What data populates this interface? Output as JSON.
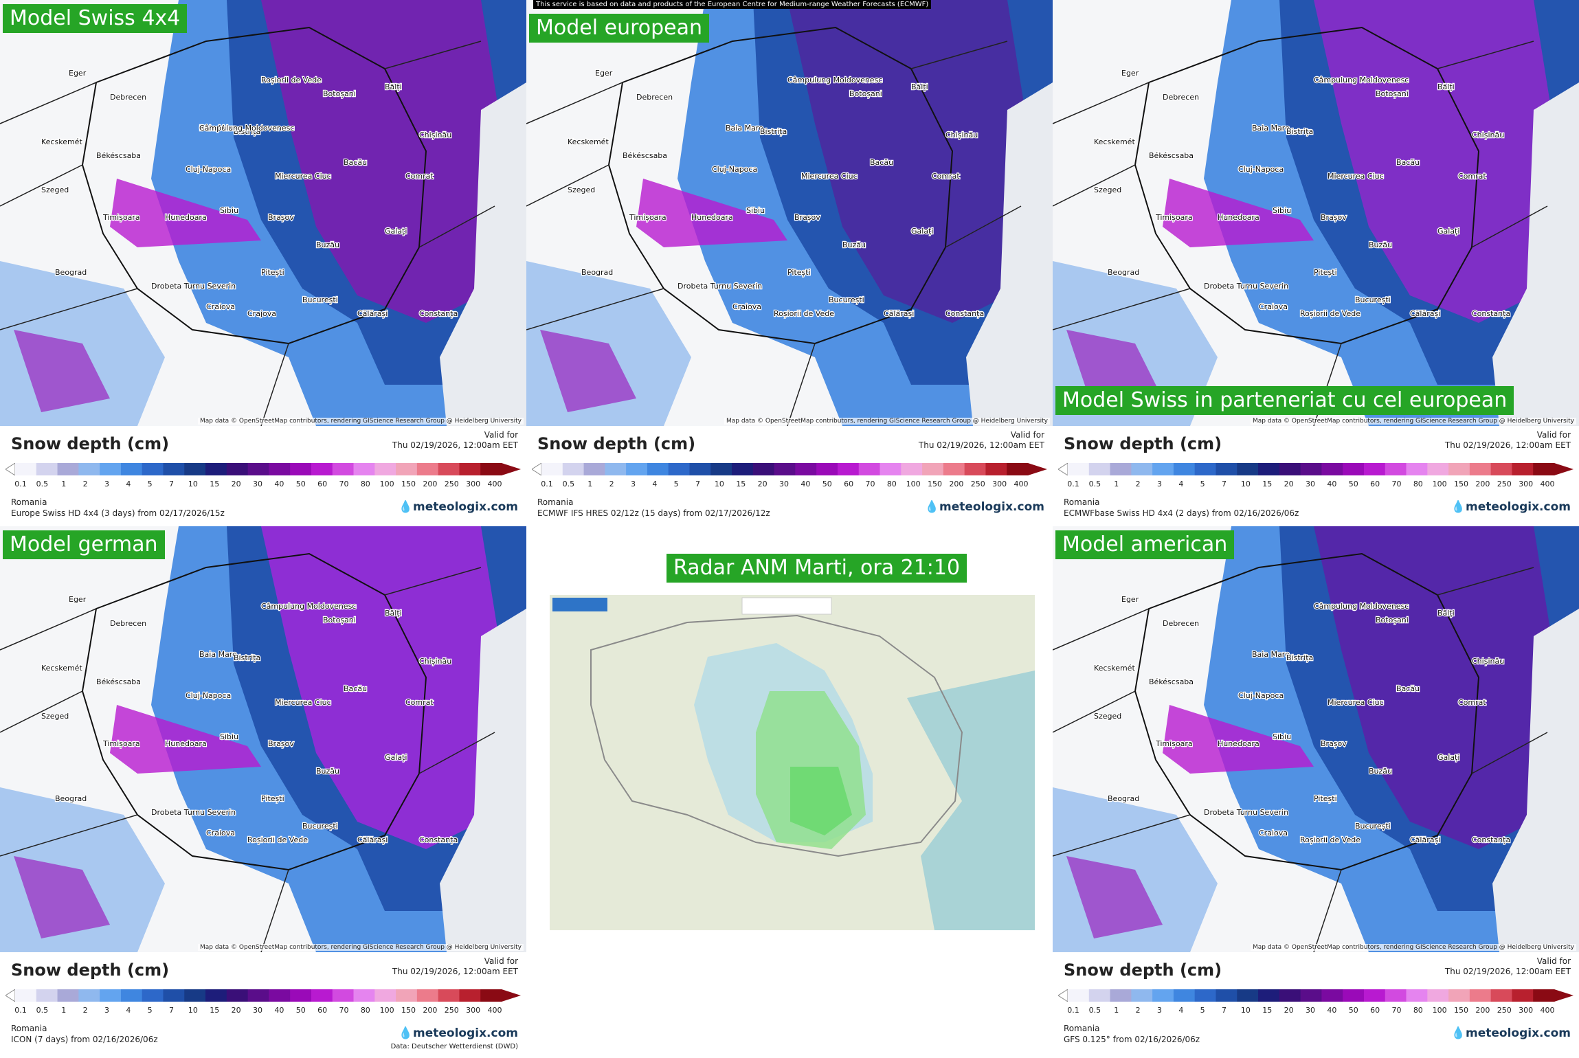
{
  "panels": [
    {
      "id": "swiss4x4",
      "label": "Model Swiss 4x4",
      "label_position": "top",
      "legend_title": "Snow depth (cm)",
      "valid_for": "Valid for",
      "valid_date": "Thu 02/19/2026, 12:00am EET",
      "region": "Romania",
      "source": "Europe Swiss HD 4x4 (3 days) from 02/17/2026/15z",
      "brand": "meteologix.com",
      "tint": "#7a1fb0"
    },
    {
      "id": "european",
      "label": "Model european",
      "label_position": "top",
      "ecmwf_note": "This service is based on data and products of the European Centre for Medium-range Weather Forecasts (ECMWF)",
      "legend_title": "Snow depth (cm)",
      "valid_for": "Valid for",
      "valid_date": "Thu 02/19/2026, 12:00am EET",
      "region": "Romania",
      "source": "ECMWF IFS HRES 02/12z (15 days) from 02/17/2026/12z",
      "brand": "meteologix.com",
      "tint": "#4b2aa0"
    },
    {
      "id": "swiss-ecmwf",
      "label": "Model Swiss in parteneriat cu cel european",
      "label_position": "bottom",
      "legend_title": "Snow depth (cm)",
      "valid_for": "Valid for",
      "valid_date": "Thu 02/19/2026, 12:00am EET",
      "region": "Romania",
      "source": "ECMWFbase Swiss HD 4x4 (2 days) from 02/16/2026/06z",
      "brand": "meteologix.com",
      "tint": "#8a2bc9"
    },
    {
      "id": "german",
      "label": "Model german",
      "label_position": "top",
      "legend_title": "Snow depth (cm)",
      "valid_for": "Valid for",
      "valid_date": "Thu 02/19/2026, 12:00am EET",
      "region": "Romania",
      "source": "ICON (7 days) from 02/16/2026/06z",
      "brand": "meteologix.com",
      "dwd": "Data: Deutscher Wetterdienst (DWD)",
      "tint": "#9a2ad8"
    },
    {
      "id": "american",
      "label": "Model american",
      "label_position": "top",
      "legend_title": "Snow depth (cm)",
      "valid_for": "Valid for",
      "valid_date": "Thu 02/19/2026, 12:00am EET",
      "region": "Romania",
      "source": "GFS 0.125° from 02/16/2026/06z",
      "brand": "meteologix.com",
      "tint": "#5a22a8"
    }
  ],
  "radar": {
    "label": "Radar ANM Marti, ora 21:10"
  },
  "attribution": "Map data © OpenStreetMap contributors, rendering GIScience Research Group @ Heidelberg University",
  "scale_ticks": [
    "0.1",
    "0.5",
    "1",
    "2",
    "3",
    "4",
    "5",
    "7",
    "10",
    "15",
    "20",
    "30",
    "40",
    "50",
    "60",
    "70",
    "80",
    "100",
    "150",
    "200",
    "250",
    "300",
    "400"
  ],
  "scale_colors": [
    "#f4f4fb",
    "#d3d3ee",
    "#a9a9d8",
    "#8fb8ee",
    "#63a4ef",
    "#3f86e0",
    "#2d68c9",
    "#1f4fa8",
    "#173a86",
    "#1d1d7a",
    "#3a0f78",
    "#5a0d8a",
    "#7a0aa0",
    "#9a0ab8",
    "#b81ad0",
    "#d24ae0",
    "#e584ef",
    "#f0a8e0",
    "#f1a4b8",
    "#ec7b8b",
    "#d84a5a",
    "#b8202e",
    "#8a0a14"
  ],
  "cities": {
    "swiss4x4": [
      "Baia Mare",
      "Bistrița",
      "Cluj-Napoca",
      "Miercurea Ciuc",
      "Brașov",
      "Sibiu",
      "Hunedoara",
      "Timișoara",
      "Drobeta Turnu Severin",
      "Craiova",
      "Pitești",
      "București",
      "Călărași",
      "Constanța",
      "Buzău",
      "Galați",
      "Bacău",
      "Chișinău",
      "Botoșani",
      "Bălți",
      "Comrat",
      "Debrecen",
      "Eger",
      "Kecskemét",
      "Békéscsaba",
      "Szeged",
      "Beograd",
      "Crajova",
      "Roșiorii de Vede",
      "Câmpulung Moldovenesc"
    ],
    "european": [
      "Baia Mare",
      "Bistrița",
      "Cluj-Napoca",
      "Miercurea Ciuc",
      "Brașov",
      "Sibiu",
      "Hunedoara",
      "Timișoara",
      "Drobeta Turnu Severin",
      "Craiova",
      "Pitești",
      "București",
      "Călărași",
      "Constanța",
      "Buzău",
      "Galați",
      "Bacău",
      "Chișinău",
      "Botoșani",
      "Bălți",
      "Comrat",
      "Debrecen",
      "Eger",
      "Kecskemét",
      "Békéscsaba",
      "Szeged",
      "Beograd",
      "Roșiorii de Vede",
      "Câmpulung Moldovenesc"
    ],
    "swiss-ecmwf": [
      "Baia Mare",
      "Bistrița",
      "Cluj-Napoca",
      "Miercurea Ciuc",
      "Brașov",
      "Sibiu",
      "Hunedoara",
      "Timișoara",
      "Drobeta Turnu Severin",
      "Craiova",
      "Pitești",
      "București",
      "Călărași",
      "Constanța",
      "Buzău",
      "Galați",
      "Bacău",
      "Chișinău",
      "Botoșani",
      "Bălți",
      "Comrat",
      "Debrecen",
      "Eger",
      "Kecskemét",
      "Békéscsaba",
      "Szeged",
      "Beograd",
      "Roșiorii de Vede",
      "Câmpulung Moldovenesc"
    ],
    "german": [
      "Baia Mare",
      "Bistrița",
      "Cluj-Napoca",
      "Miercurea Ciuc",
      "Brașov",
      "Sibiu",
      "Hunedoara",
      "Timișoara",
      "Drobeta Turnu Severin",
      "Craiova",
      "Pitești",
      "București",
      "Călărași",
      "Constanța",
      "Buzău",
      "Galați",
      "Bacău",
      "Chișinău",
      "Botoșani",
      "Bălți",
      "Comrat",
      "Debrecen",
      "Eger",
      "Kecskemét",
      "Békéscsaba",
      "Szeged",
      "Beograd",
      "Roșiorii de Vede",
      "Câmpulung Moldovenesc"
    ],
    "american": [
      "Baia Mare",
      "Bistrița",
      "Cluj-Napoca",
      "Miercurea Ciuc",
      "Brașov",
      "Sibiu",
      "Hunedoara",
      "Timișoara",
      "Drobeta Turnu Severin",
      "Craiova",
      "Pitești",
      "București",
      "Călărași",
      "Constanța",
      "Buzău",
      "Galați",
      "Bacău",
      "Chișinău",
      "Botoșani",
      "Bălți",
      "Comrat",
      "Debrecen",
      "Eger",
      "Kecskemét",
      "Békéscsaba",
      "Szeged",
      "Beograd",
      "Roșiorii de Vede",
      "Câmpulung Moldovenesc"
    ]
  }
}
